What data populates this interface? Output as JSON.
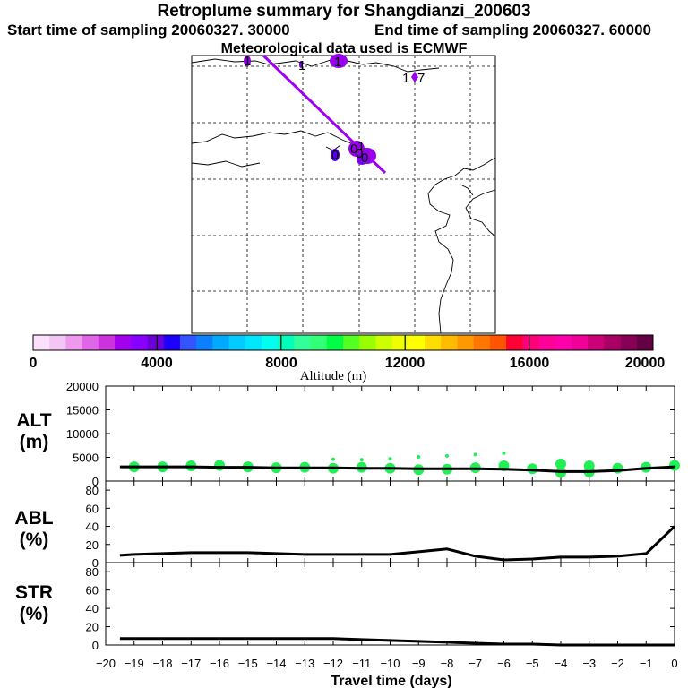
{
  "title": "Retroplume summary for Shangdianzi_200603",
  "start_label": "Start time of sampling 20060327. 30000",
  "end_label": "End time of sampling 20060327. 60000",
  "met_label": "Meteorological data used is ECMWF",
  "colors": {
    "plume": "#9900ee",
    "track": "#a000f0",
    "alt_points": "#22ee55",
    "line": "#000000"
  },
  "map": {
    "labels": [
      {
        "text": "1"
      },
      {
        "text": "1"
      },
      {
        "text": "1"
      },
      {
        "text": "1"
      },
      {
        "text": "0"
      },
      {
        "text": "0"
      },
      {
        "text": "0"
      },
      {
        "text": "0"
      },
      {
        "text": "1"
      },
      {
        "text": "7"
      }
    ]
  },
  "colorbar": {
    "label": "Altitude (m)",
    "ticks": [
      "0",
      "4000",
      "8000",
      "12000",
      "16000",
      "20000"
    ],
    "colors": [
      "#fbe0fb",
      "#f4c4f4",
      "#ee99ee",
      "#e066e8",
      "#cc33dd",
      "#a300f0",
      "#8800ff",
      "#6b00d8",
      "#1e00ff",
      "#3355ff",
      "#0a80ff",
      "#00aaff",
      "#00ccff",
      "#00e6ff",
      "#00ffee",
      "#00ffbb",
      "#33ff99",
      "#33ff77",
      "#00ff44",
      "#55ff22",
      "#99ff00",
      "#ccff00",
      "#eeff00",
      "#ffff00",
      "#ffdd00",
      "#ffbb00",
      "#ff9900",
      "#ff7700",
      "#ff5500",
      "#ff0033",
      "#ff0077",
      "#ff0099",
      "#ff00aa",
      "#ee0099",
      "#cc0077",
      "#aa0066",
      "#880055",
      "#660044"
    ]
  },
  "chart_data": [
    {
      "type": "line",
      "panel": "ALT",
      "ylabel": "ALT (m)",
      "ylim": [
        0,
        20000
      ],
      "yticks": [
        "0",
        "5000",
        "10000",
        "15000",
        "20000"
      ],
      "x": [
        -19.5,
        -19,
        -18,
        -17,
        -16,
        -15,
        -14,
        -13,
        -12,
        -11,
        -10,
        -9,
        -8,
        -7,
        -6,
        -5,
        -4,
        -3,
        -2,
        -1,
        0
      ],
      "values": [
        3000,
        3000,
        3000,
        3000,
        2900,
        2900,
        2800,
        2800,
        2800,
        2700,
        2700,
        2600,
        2600,
        2600,
        2500,
        2300,
        2000,
        2000,
        2200,
        2700,
        3000
      ],
      "scatter_x": [
        -19,
        -18,
        -17,
        -16,
        -15,
        -14,
        -13,
        -12,
        -12,
        -11,
        -11,
        -10,
        -10,
        -9,
        -9,
        -8,
        -8,
        -7,
        -7,
        -6,
        -6,
        -5,
        -4,
        -4,
        -3,
        -3,
        -2,
        -1,
        0
      ],
      "scatter_y": [
        3000,
        3000,
        3200,
        3300,
        3000,
        2800,
        2900,
        2700,
        4600,
        2900,
        4500,
        2700,
        4700,
        2400,
        5100,
        2500,
        5300,
        2800,
        5600,
        3200,
        5900,
        2600,
        1800,
        3600,
        1900,
        3200,
        2700,
        2900,
        3300
      ]
    },
    {
      "type": "line",
      "panel": "ABL",
      "ylabel": "ABL (%)",
      "ylim": [
        0,
        90
      ],
      "yticks": [
        "0",
        "20",
        "40",
        "60",
        "80"
      ],
      "x": [
        -19.5,
        -19,
        -18,
        -17,
        -16,
        -15,
        -14,
        -13,
        -12,
        -11,
        -10,
        -9,
        -8,
        -7,
        -6,
        -5,
        -4,
        -3,
        -2,
        -1,
        0
      ],
      "values": [
        8,
        9,
        10,
        11,
        11,
        11,
        10,
        9,
        9,
        9,
        9,
        12,
        15,
        7,
        3,
        4,
        6,
        6,
        7,
        10,
        40
      ]
    },
    {
      "type": "line",
      "panel": "STR",
      "ylabel": "STR (%)",
      "ylim": [
        0,
        90
      ],
      "yticks": [
        "0",
        "20",
        "40",
        "60",
        "80"
      ],
      "x": [
        -19.5,
        -19,
        -18,
        -17,
        -16,
        -15,
        -14,
        -13,
        -12,
        -11,
        -10,
        -9,
        -8,
        -7,
        -6,
        -5,
        -4,
        -3,
        -2,
        -1,
        0
      ],
      "values": [
        7,
        7,
        7,
        7,
        7,
        7,
        7,
        7,
        7,
        6,
        5,
        4,
        3,
        2,
        1,
        1,
        0,
        0,
        0,
        0,
        0
      ],
      "xlabel": "Travel time (days)",
      "xticks": [
        "−20",
        "−19",
        "−18",
        "−17",
        "−16",
        "−15",
        "−14",
        "−13",
        "−12",
        "−11",
        "−10",
        "−9",
        "−8",
        "−7",
        "−6",
        "−5",
        "−4",
        "−3",
        "−2",
        "−1",
        "0"
      ]
    }
  ]
}
